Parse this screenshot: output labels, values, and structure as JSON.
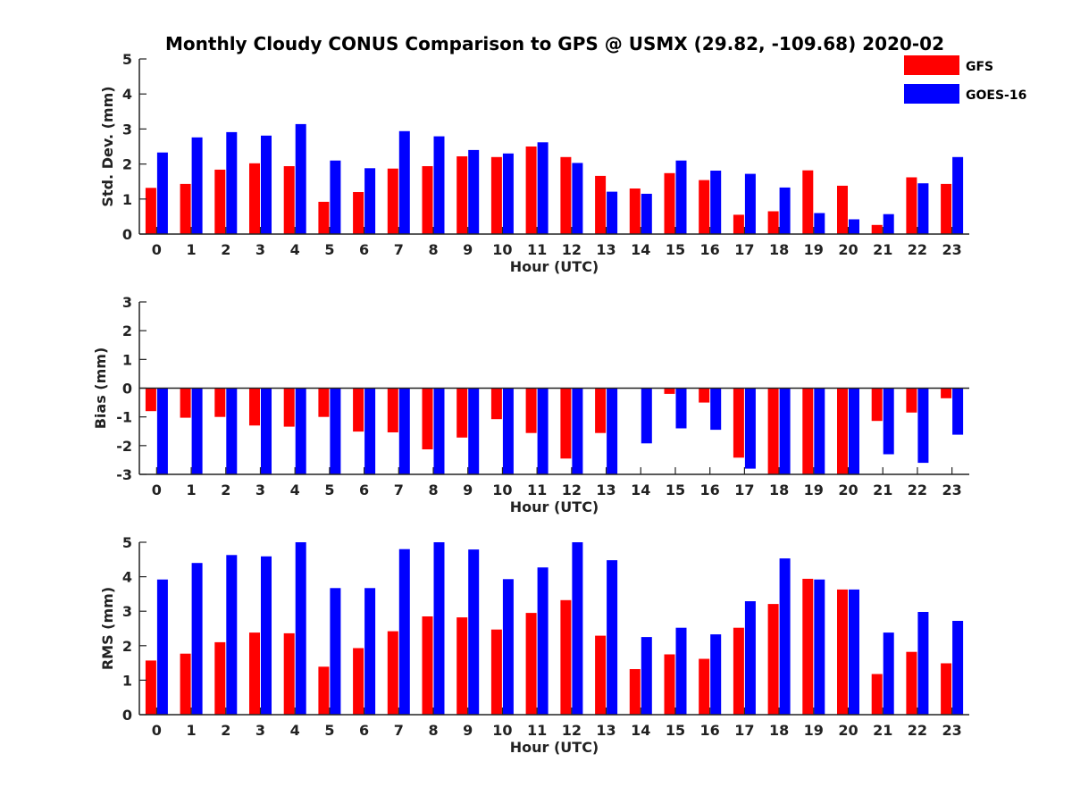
{
  "chart_data": [
    {
      "type": "bar",
      "title": "Monthly Cloudy CONUS Comparison to GPS @ USMX (29.82, -109.68) 2020-02",
      "xlabel": "Hour (UTC)",
      "ylabel": "Std. Dev. (mm)",
      "ylim": [
        0,
        5
      ],
      "yticks": [
        0,
        1,
        2,
        3,
        4,
        5
      ],
      "categories": [
        "0",
        "1",
        "2",
        "3",
        "4",
        "5",
        "6",
        "7",
        "8",
        "9",
        "10",
        "11",
        "12",
        "13",
        "14",
        "15",
        "16",
        "17",
        "18",
        "19",
        "20",
        "21",
        "22",
        "23"
      ],
      "legend_position": "top-right",
      "series": [
        {
          "name": "GFS",
          "color": "#ff0000",
          "values": [
            1.32,
            1.43,
            1.84,
            2.02,
            1.94,
            0.92,
            1.2,
            1.87,
            1.94,
            2.22,
            2.2,
            2.5,
            2.2,
            1.66,
            1.3,
            1.74,
            1.54,
            0.55,
            0.65,
            1.82,
            1.38,
            0.26,
            1.62,
            1.43
          ]
        },
        {
          "name": "GOES-16",
          "color": "#0000ff",
          "values": [
            2.33,
            2.76,
            2.91,
            2.81,
            3.14,
            2.1,
            1.88,
            2.94,
            2.79,
            2.4,
            2.3,
            2.62,
            2.03,
            1.21,
            1.15,
            2.1,
            1.81,
            1.72,
            1.33,
            0.6,
            0.42,
            0.57,
            1.45,
            2.2
          ]
        }
      ]
    },
    {
      "type": "bar",
      "xlabel": "Hour (UTC)",
      "ylabel": "Bias (mm)",
      "ylim": [
        -3,
        3
      ],
      "yticks": [
        -3,
        -2,
        -1,
        0,
        1,
        2,
        3
      ],
      "categories": [
        "0",
        "1",
        "2",
        "3",
        "4",
        "5",
        "6",
        "7",
        "8",
        "9",
        "10",
        "11",
        "12",
        "13",
        "14",
        "15",
        "16",
        "17",
        "18",
        "19",
        "20",
        "21",
        "22",
        "23"
      ],
      "series": [
        {
          "name": "GFS",
          "color": "#ff0000",
          "values": [
            -0.8,
            -1.03,
            -1.0,
            -1.3,
            -1.34,
            -1.0,
            -1.51,
            -1.54,
            -2.13,
            -1.72,
            -1.08,
            -1.56,
            -2.45,
            -1.56,
            0,
            -0.2,
            -0.5,
            -2.42,
            -3.0,
            -3.0,
            -3.0,
            -1.14,
            -0.85,
            -0.35
          ]
        },
        {
          "name": "GOES-16",
          "color": "#0000ff",
          "values": [
            -3.0,
            -3.0,
            -3.0,
            -3.0,
            -3.0,
            -3.0,
            -3.0,
            -3.0,
            -3.0,
            -3.0,
            -3.0,
            -3.0,
            -3.0,
            -3.0,
            -1.92,
            -1.4,
            -1.45,
            -2.8,
            -3.0,
            -3.0,
            -3.0,
            -2.3,
            -2.6,
            -1.62
          ]
        }
      ]
    },
    {
      "type": "bar",
      "xlabel": "Hour (UTC)",
      "ylabel": "RMS (mm)",
      "ylim": [
        0,
        5
      ],
      "yticks": [
        0,
        1,
        2,
        3,
        4,
        5
      ],
      "categories": [
        "0",
        "1",
        "2",
        "3",
        "4",
        "5",
        "6",
        "7",
        "8",
        "9",
        "10",
        "11",
        "12",
        "13",
        "14",
        "15",
        "16",
        "17",
        "18",
        "19",
        "20",
        "21",
        "22",
        "23"
      ],
      "series": [
        {
          "name": "GFS",
          "color": "#ff0000",
          "values": [
            1.57,
            1.77,
            2.1,
            2.38,
            2.36,
            1.39,
            1.93,
            2.42,
            2.85,
            2.82,
            2.47,
            2.95,
            3.32,
            2.29,
            1.32,
            1.75,
            1.62,
            2.52,
            3.21,
            3.94,
            3.63,
            1.18,
            1.82,
            1.49
          ]
        },
        {
          "name": "GOES-16",
          "color": "#0000ff",
          "values": [
            3.92,
            4.4,
            4.63,
            4.59,
            5.0,
            3.67,
            3.67,
            4.8,
            5.0,
            4.79,
            3.93,
            4.27,
            5.0,
            4.48,
            2.25,
            2.52,
            2.33,
            3.29,
            4.53,
            3.92,
            3.63,
            2.38,
            2.98,
            2.72
          ]
        }
      ]
    }
  ]
}
